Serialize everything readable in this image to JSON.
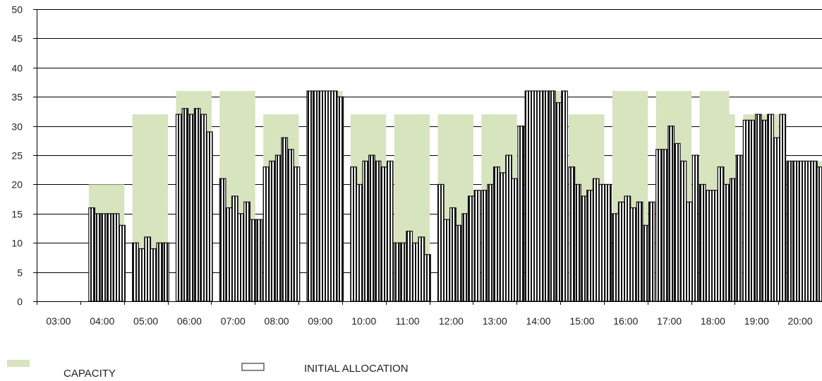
{
  "chart_data": {
    "type": "bar",
    "title": "",
    "xlabel": "",
    "ylabel": "",
    "ylim": [
      0,
      50
    ],
    "yticks": [
      0,
      5,
      10,
      15,
      20,
      25,
      30,
      35,
      40,
      45,
      50
    ],
    "grid": true,
    "legend_placement": "bottom-left",
    "categories": [
      "03:00",
      "04:00",
      "05:00",
      "06:00",
      "07:00",
      "08:00",
      "09:00",
      "10:00",
      "11:00",
      "12:00",
      "13:00",
      "14:00",
      "15:00",
      "16:00",
      "17:00",
      "18:00",
      "19:00",
      "20:00"
    ],
    "series": [
      {
        "name": "CAPACITY",
        "color": "#d7e4bd",
        "values": [
          [
            0,
            0,
            0,
            0,
            0,
            0
          ],
          [
            20,
            20,
            20,
            20,
            20,
            20
          ],
          [
            32,
            32,
            32,
            32,
            32,
            32
          ],
          [
            36,
            36,
            36,
            36,
            36,
            36
          ],
          [
            36,
            36,
            36,
            36,
            36,
            36
          ],
          [
            32,
            32,
            32,
            32,
            32,
            32
          ],
          [
            36,
            36,
            36,
            36,
            36,
            36
          ],
          [
            32,
            32,
            32,
            32,
            32,
            32
          ],
          [
            32,
            32,
            32,
            32,
            32,
            32
          ],
          [
            32,
            32,
            32,
            32,
            32,
            32
          ],
          [
            32,
            32,
            32,
            32,
            32,
            32
          ],
          [
            36,
            36,
            36,
            36,
            36,
            36
          ],
          [
            32,
            32,
            32,
            32,
            32,
            32
          ],
          [
            36,
            36,
            36,
            36,
            36,
            36
          ],
          [
            36,
            36,
            36,
            36,
            36,
            36
          ],
          [
            36,
            36,
            36,
            36,
            36,
            32
          ],
          [
            32,
            32,
            32,
            32,
            32,
            32
          ],
          [
            24,
            24,
            24,
            24,
            24,
            24
          ]
        ]
      },
      {
        "name": "INITIAL ALLOCATION",
        "color": "#ffffff",
        "values": [
          [
            0,
            0,
            0,
            0,
            0,
            0
          ],
          [
            16,
            15,
            15,
            15,
            15,
            13
          ],
          [
            10,
            9,
            11,
            9,
            10,
            10
          ],
          [
            32,
            33,
            32,
            33,
            32,
            29
          ],
          [
            21,
            16,
            18,
            15,
            17,
            14
          ],
          [
            23,
            24,
            25,
            28,
            26,
            23
          ],
          [
            36,
            36,
            36,
            36,
            36,
            35
          ],
          [
            23,
            20,
            24,
            25,
            24,
            23
          ],
          [
            10,
            10,
            12,
            10,
            11,
            8
          ],
          [
            20,
            14,
            16,
            13,
            15,
            18
          ],
          [
            19,
            20,
            23,
            22,
            25,
            21
          ],
          [
            36,
            36,
            36,
            36,
            36,
            34
          ],
          [
            23,
            20,
            18,
            19,
            21,
            20
          ],
          [
            15,
            17,
            18,
            16,
            17,
            13
          ],
          [
            26,
            26,
            30,
            27,
            24,
            17
          ],
          [
            20,
            19,
            19,
            23,
            20,
            21
          ],
          [
            31,
            31,
            32,
            31,
            32,
            28
          ],
          [
            24,
            24,
            24,
            24,
            24,
            23
          ]
        ],
        "extra_values": [
          null,
          null,
          null,
          null,
          14,
          0,
          null,
          24,
          null,
          19,
          30,
          36,
          20,
          17,
          25,
          25,
          32,
          null
        ]
      }
    ]
  }
}
